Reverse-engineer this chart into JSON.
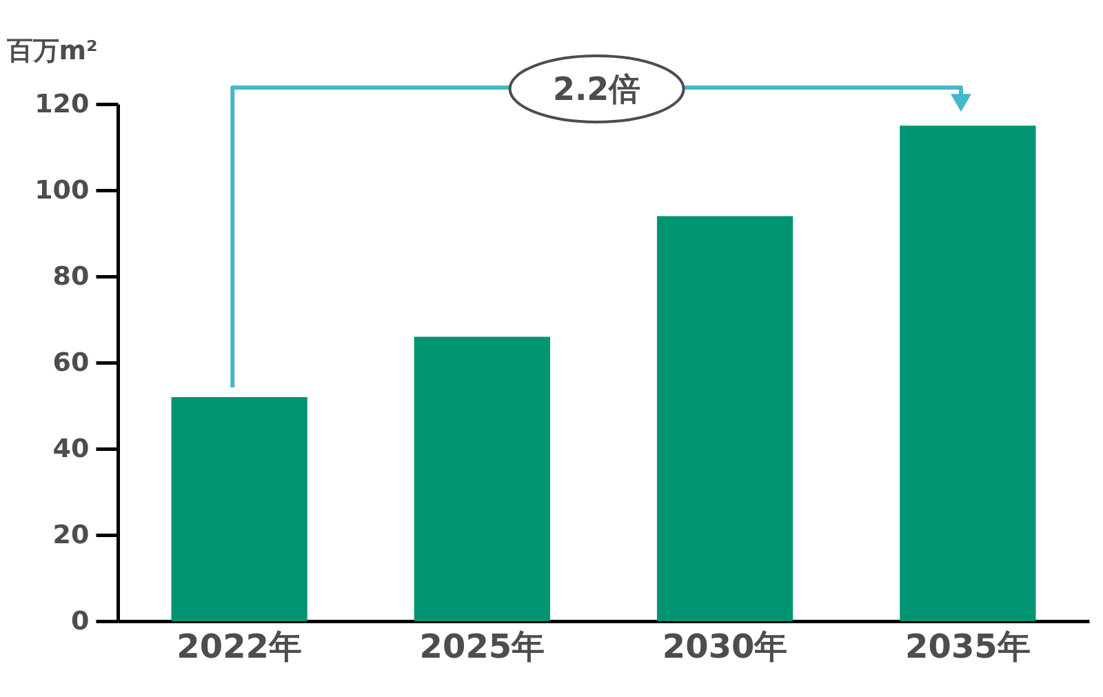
{
  "chart_data": {
    "type": "bar",
    "ylabel": "百万m²",
    "categories": [
      "2022年",
      "2025年",
      "2030年",
      "2035年"
    ],
    "values": [
      52,
      66,
      94,
      115
    ],
    "color": "#009473",
    "ylim": [
      0,
      120
    ],
    "yticks": [
      0,
      20,
      40,
      60,
      80,
      100,
      120
    ],
    "grid": false,
    "annotations": [
      "2.2倍"
    ]
  }
}
